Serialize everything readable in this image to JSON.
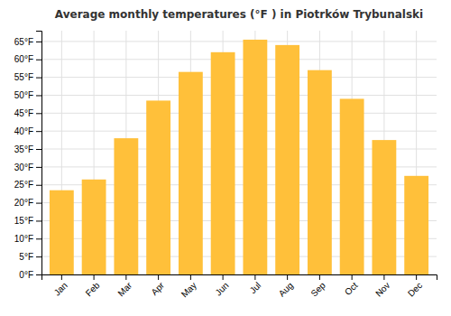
{
  "chart_data": {
    "type": "bar",
    "title": "Average monthly temperatures (°F ) in Piotrków Trybunalski",
    "categories": [
      "Jan",
      "Feb",
      "Mar",
      "Apr",
      "May",
      "Jun",
      "Jul",
      "Aug",
      "Sep",
      "Oct",
      "Nov",
      "Dec"
    ],
    "values": [
      23.5,
      26.5,
      38.0,
      48.5,
      56.5,
      62.0,
      65.5,
      64.0,
      57.0,
      49.0,
      37.5,
      27.5
    ],
    "color": "#FFC03A",
    "ylim": [
      0,
      68
    ],
    "yticks": [
      {
        "value": 0,
        "label": "0°F"
      },
      {
        "value": 5,
        "label": "5°F"
      },
      {
        "value": 10,
        "label": "10°F"
      },
      {
        "value": 15,
        "label": "15°F"
      },
      {
        "value": 20,
        "label": "20°F"
      },
      {
        "value": 25,
        "label": "25°F"
      },
      {
        "value": 30,
        "label": "30°F"
      },
      {
        "value": 35,
        "label": "35°F"
      },
      {
        "value": 40,
        "label": "40°F"
      },
      {
        "value": 45,
        "label": "45°F"
      },
      {
        "value": 50,
        "label": "50°F"
      },
      {
        "value": 55,
        "label": "55°F"
      },
      {
        "value": 60,
        "label": "60°F"
      },
      {
        "value": 65,
        "label": "65°F"
      }
    ],
    "grid": true
  }
}
